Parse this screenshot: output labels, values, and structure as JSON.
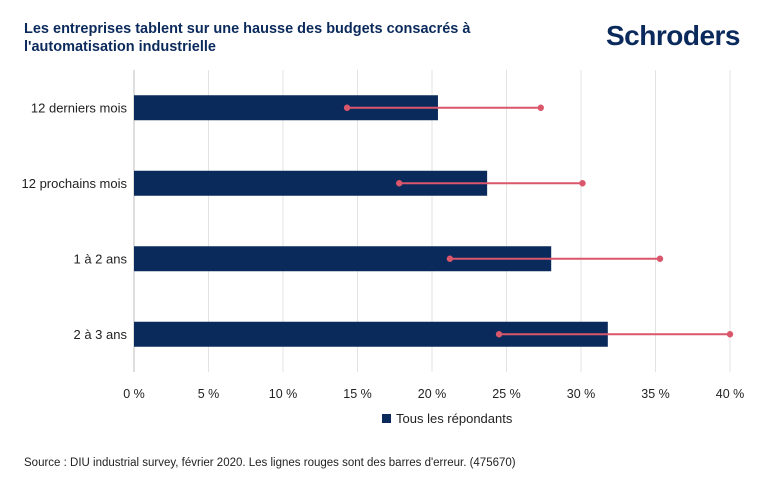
{
  "title": "Les entreprises tablent sur une hausse des budgets consacrés à l'automatisation industrielle",
  "logo": "Schroders",
  "source": "Source : DIU industrial survey, février 2020. Les lignes rouges sont des barres d'erreur. (475670)",
  "colors": {
    "bar": "#0b2a5c",
    "error": "#d9566b",
    "grid": "#e3e3e3",
    "title": "#0b2a5c"
  },
  "chart_data": {
    "type": "bar",
    "orientation": "horizontal",
    "categories": [
      "12 derniers mois",
      "12 prochains mois",
      "1 à 2 ans",
      "2 à 3 ans"
    ],
    "series": [
      {
        "name": "Tous les répondants",
        "values": [
          20.4,
          23.7,
          28.0,
          31.8
        ]
      }
    ],
    "error_bars": [
      {
        "low": 14.3,
        "high": 27.3
      },
      {
        "low": 17.8,
        "high": 30.1
      },
      {
        "low": 21.2,
        "high": 35.3
      },
      {
        "low": 24.5,
        "high": 40.0
      }
    ],
    "xlim": [
      0,
      40
    ],
    "xticks": [
      0,
      5,
      10,
      15,
      20,
      25,
      30,
      35,
      40
    ],
    "xtick_labels": [
      "0 %",
      "5 %",
      "10 %",
      "15 %",
      "20 %",
      "25 %",
      "30 %",
      "35 %",
      "40 %"
    ],
    "grid": true,
    "legend": "bottom",
    "xlabel": "",
    "ylabel": ""
  }
}
